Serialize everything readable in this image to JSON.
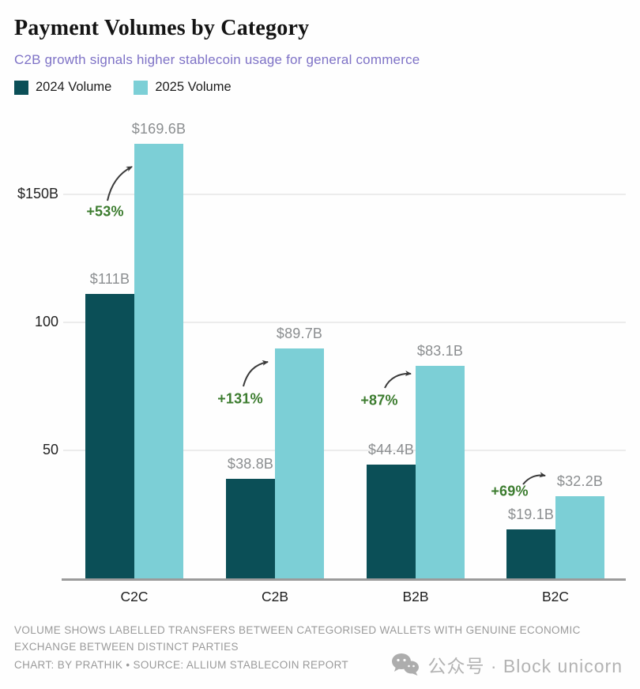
{
  "header": {
    "title": "Payment Volumes by Category",
    "subtitle": "C2B growth signals higher stablecoin usage for general commerce"
  },
  "colors": {
    "series_2024": "#0b4f57",
    "series_2025": "#7ccfd6",
    "growth_green": "#3c7c2f",
    "subtitle_purple": "#7e72c6",
    "value_label_gray": "#8b8e90"
  },
  "chart_data": {
    "type": "bar",
    "title": "Payment Volumes by Category",
    "subtitle": "C2B growth signals higher stablecoin usage for general commerce",
    "categories": [
      "C2C",
      "C2B",
      "B2B",
      "B2C"
    ],
    "series": [
      {
        "name": "2024 Volume",
        "color": "#0b4f57",
        "values": [
          111,
          38.8,
          44.4,
          19.1
        ],
        "labels": [
          "$111B",
          "$38.8B",
          "$44.4B",
          "$19.1B"
        ]
      },
      {
        "name": "2025 Volume",
        "color": "#7ccfd6",
        "values": [
          169.6,
          89.7,
          83.1,
          32.2
        ],
        "labels": [
          "$169.6B",
          "$89.7B",
          "$83.1B",
          "$32.2B"
        ]
      }
    ],
    "pct_changes": [
      "+53%",
      "+131%",
      "+87%",
      "+69%"
    ],
    "y_ticks": [
      {
        "value": 150,
        "label": "$150B"
      },
      {
        "value": 100,
        "label": "100"
      },
      {
        "value": 50,
        "label": "50"
      }
    ],
    "ylim": [
      0,
      175
    ],
    "grid": "horizontal",
    "legend_position": "top-left",
    "ylabel": "",
    "xlabel": ""
  },
  "footer": {
    "note": "VOLUME SHOWS LABELLED TRANSFERS BETWEEN CATEGORISED WALLETS WITH GENUINE ECONOMIC EXCHANGE BETWEEN DISTINCT PARTIES",
    "credit": "CHART: BY PRATHIK • SOURCE: ALLIUM STABLECOIN REPORT"
  },
  "watermark": {
    "icon": "wechat-icon",
    "text": "公众号 · Block unicorn"
  }
}
